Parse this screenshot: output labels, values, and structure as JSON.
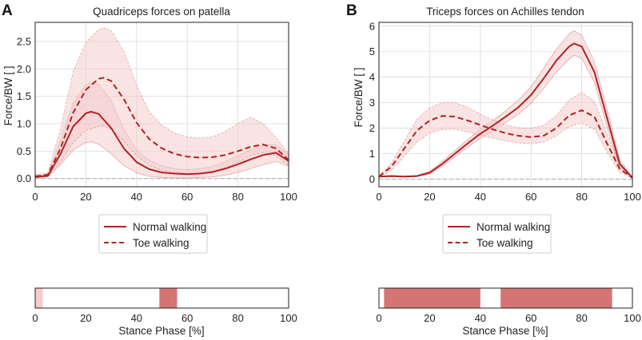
{
  "colors": {
    "main": "#b22222",
    "band": "#f4cccc",
    "sig_strong": "#d47474",
    "sig_light": "#f4cccc",
    "grid": "#d9d9d9",
    "zero_line": "#aaaaaa"
  },
  "legend": {
    "normal": "Normal walking",
    "toe": "Toe walking"
  },
  "chart_data": [
    {
      "panel": "A",
      "type": "line",
      "title": "Quadriceps forces on patella",
      "ylabel": "Force/BW [ ]",
      "xlabel": "",
      "xlim": [
        0,
        100
      ],
      "ylim": [
        -0.15,
        2.85
      ],
      "xticks": [
        0,
        20,
        40,
        60,
        80,
        100
      ],
      "yticks": [
        0.0,
        0.5,
        1.0,
        1.5,
        2.0,
        2.5
      ],
      "ytick_labels": [
        "0.0",
        "0.5",
        "1.0",
        "1.5",
        "2.0",
        "2.5"
      ],
      "grid": true,
      "legend_position": "below",
      "series": [
        {
          "name": "Normal walking",
          "style": "solid",
          "x": [
            0,
            5,
            10,
            15,
            20,
            22,
            25,
            30,
            35,
            40,
            45,
            50,
            55,
            60,
            65,
            70,
            75,
            80,
            85,
            90,
            95,
            100
          ],
          "mean": [
            0.03,
            0.05,
            0.45,
            0.95,
            1.19,
            1.22,
            1.18,
            0.92,
            0.55,
            0.3,
            0.17,
            0.11,
            0.09,
            0.08,
            0.09,
            0.12,
            0.18,
            0.26,
            0.35,
            0.43,
            0.47,
            0.32
          ],
          "lower": [
            0.01,
            0.03,
            0.25,
            0.52,
            0.66,
            0.67,
            0.63,
            0.45,
            0.24,
            0.1,
            0.04,
            0.02,
            0.01,
            0.01,
            0.02,
            0.03,
            0.06,
            0.11,
            0.18,
            0.25,
            0.31,
            0.22
          ],
          "upper": [
            0.05,
            0.08,
            0.7,
            1.38,
            1.7,
            1.75,
            1.72,
            1.42,
            0.9,
            0.52,
            0.33,
            0.23,
            0.18,
            0.16,
            0.18,
            0.22,
            0.31,
            0.41,
            0.52,
            0.6,
            0.62,
            0.43
          ]
        },
        {
          "name": "Toe walking",
          "style": "dashed",
          "x": [
            0,
            5,
            10,
            15,
            20,
            25,
            27,
            30,
            35,
            40,
            45,
            50,
            55,
            60,
            65,
            70,
            75,
            80,
            85,
            90,
            95,
            100
          ],
          "mean": [
            0.04,
            0.07,
            0.55,
            1.2,
            1.62,
            1.82,
            1.84,
            1.78,
            1.45,
            1.02,
            0.72,
            0.55,
            0.45,
            0.4,
            0.38,
            0.39,
            0.43,
            0.5,
            0.58,
            0.62,
            0.55,
            0.34
          ],
          "lower": [
            0.01,
            0.03,
            0.3,
            0.66,
            0.88,
            0.95,
            0.96,
            0.9,
            0.68,
            0.42,
            0.24,
            0.15,
            0.11,
            0.09,
            0.1,
            0.13,
            0.2,
            0.3,
            0.42,
            0.47,
            0.42,
            0.24
          ],
          "upper": [
            0.07,
            0.11,
            0.9,
            1.95,
            2.48,
            2.72,
            2.75,
            2.7,
            2.32,
            1.7,
            1.22,
            0.97,
            0.83,
            0.76,
            0.74,
            0.76,
            0.86,
            1.0,
            1.12,
            1.0,
            0.75,
            0.45
          ]
        }
      ]
    },
    {
      "panel": "B",
      "type": "line",
      "title": "Triceps forces on Achilles tendon",
      "ylabel": "Force/BW [ ]",
      "xlabel": "",
      "xlim": [
        0,
        100
      ],
      "ylim": [
        -0.3,
        6.15
      ],
      "xticks": [
        0,
        20,
        40,
        60,
        80,
        100
      ],
      "yticks": [
        0,
        1,
        2,
        3,
        4,
        5,
        6
      ],
      "ytick_labels": [
        "0",
        "1",
        "2",
        "3",
        "4",
        "5",
        "6"
      ],
      "grid": true,
      "legend_position": "below",
      "series": [
        {
          "name": "Normal walking",
          "style": "solid",
          "x": [
            0,
            5,
            10,
            15,
            20,
            25,
            30,
            35,
            40,
            45,
            50,
            55,
            60,
            65,
            70,
            75,
            77,
            80,
            85,
            90,
            95,
            100
          ],
          "mean": [
            0.1,
            0.12,
            0.1,
            0.12,
            0.25,
            0.6,
            1.0,
            1.4,
            1.78,
            2.1,
            2.45,
            2.82,
            3.3,
            3.95,
            4.65,
            5.2,
            5.32,
            5.2,
            4.2,
            2.4,
            0.6,
            0.05
          ],
          "lower": [
            0.08,
            0.1,
            0.08,
            0.1,
            0.2,
            0.5,
            0.88,
            1.25,
            1.6,
            1.9,
            2.22,
            2.55,
            2.98,
            3.55,
            4.2,
            4.7,
            4.85,
            4.75,
            3.8,
            2.05,
            0.45,
            0.03
          ],
          "upper": [
            0.12,
            0.14,
            0.12,
            0.14,
            0.3,
            0.7,
            1.12,
            1.55,
            1.96,
            2.3,
            2.68,
            3.1,
            3.62,
            4.35,
            5.1,
            5.7,
            5.82,
            5.65,
            4.6,
            2.75,
            0.75,
            0.08
          ]
        },
        {
          "name": "Toe walking",
          "style": "dashed",
          "x": [
            0,
            5,
            10,
            15,
            20,
            25,
            30,
            35,
            40,
            45,
            50,
            55,
            60,
            65,
            70,
            75,
            80,
            85,
            90,
            95,
            100
          ],
          "mean": [
            0.1,
            0.5,
            1.2,
            1.9,
            2.3,
            2.48,
            2.45,
            2.3,
            2.12,
            1.95,
            1.8,
            1.7,
            1.65,
            1.7,
            2.0,
            2.5,
            2.7,
            2.45,
            1.4,
            0.4,
            0.05
          ],
          "lower": [
            0.08,
            0.35,
            0.9,
            1.45,
            1.8,
            1.95,
            1.95,
            1.85,
            1.72,
            1.6,
            1.5,
            1.42,
            1.38,
            1.45,
            1.7,
            2.05,
            2.2,
            1.95,
            1.05,
            0.28,
            0.03
          ],
          "upper": [
            0.12,
            0.65,
            1.5,
            2.35,
            2.8,
            3.0,
            3.0,
            2.82,
            2.55,
            2.32,
            2.12,
            2.02,
            2.0,
            2.1,
            2.5,
            3.1,
            3.4,
            3.05,
            1.8,
            0.55,
            0.08
          ]
        }
      ]
    },
    {
      "panel": "A",
      "type": "bar",
      "role": "significance",
      "xlabel": "Stance Phase [%]",
      "xlim": [
        0,
        100
      ],
      "xticks": [
        0,
        20,
        40,
        60,
        80,
        100
      ],
      "intervals": [
        {
          "start": 0,
          "end": 3,
          "level": "light"
        },
        {
          "start": 49,
          "end": 56,
          "level": "strong"
        }
      ]
    },
    {
      "panel": "B",
      "type": "bar",
      "role": "significance",
      "xlabel": "Stance Phase [%]",
      "xlim": [
        0,
        100
      ],
      "xticks": [
        0,
        20,
        40,
        60,
        80,
        100
      ],
      "intervals": [
        {
          "start": 2,
          "end": 40,
          "level": "strong"
        },
        {
          "start": 48,
          "end": 92,
          "level": "strong"
        }
      ]
    }
  ]
}
